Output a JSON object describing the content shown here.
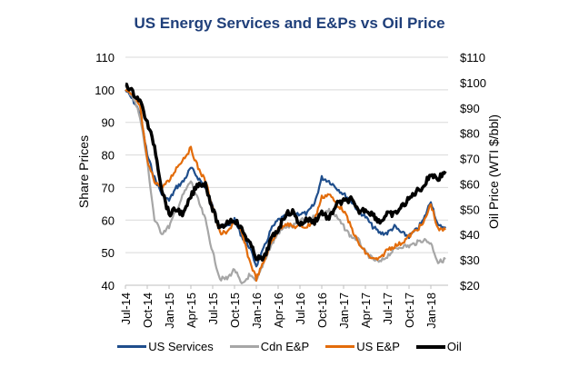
{
  "chart_data": {
    "type": "line",
    "title": "US Energy Services and E&Ps vs Oil Price",
    "xlabel": "",
    "ylabel": "Share Prices",
    "y2label": "Oil Price (WTI $/bbl)",
    "ylim": [
      40,
      110
    ],
    "y2lim": [
      20,
      110
    ],
    "yticks": [
      "40",
      "50",
      "60",
      "70",
      "80",
      "90",
      "100",
      "110"
    ],
    "y2ticks": [
      "$20",
      "$30",
      "$40",
      "$50",
      "$60",
      "$70",
      "$80",
      "$90",
      "$100",
      "$110"
    ],
    "xticks": [
      "Jul-14",
      "Oct-14",
      "Jan-15",
      "Apr-15",
      "Jul-15",
      "Oct-15",
      "Jan-16",
      "Apr-16",
      "Jul-16",
      "Oct-16",
      "Jan-17",
      "Apr-17",
      "Jul-17",
      "Oct-17",
      "Jan-18"
    ],
    "x": [
      "Jul-14",
      "Aug-14",
      "Sep-14",
      "Oct-14",
      "Nov-14",
      "Dec-14",
      "Jan-15",
      "Feb-15",
      "Mar-15",
      "Apr-15",
      "May-15",
      "Jun-15",
      "Jul-15",
      "Aug-15",
      "Sep-15",
      "Oct-15",
      "Nov-15",
      "Dec-15",
      "Jan-16",
      "Feb-16",
      "Mar-16",
      "Apr-16",
      "May-16",
      "Jun-16",
      "Jul-16",
      "Aug-16",
      "Sep-16",
      "Oct-16",
      "Nov-16",
      "Dec-16",
      "Jan-17",
      "Feb-17",
      "Mar-17",
      "Apr-17",
      "May-17",
      "Jun-17",
      "Jul-17",
      "Aug-17",
      "Sep-17",
      "Oct-17",
      "Nov-17",
      "Dec-17",
      "Jan-18",
      "Feb-18",
      "Mar-18"
    ],
    "grid": true,
    "legend": "bottom",
    "series": [
      {
        "name": "US Services",
        "axis": "left",
        "color": "#1f4e8c",
        "values": [
          100,
          97,
          93,
          80,
          73,
          68,
          66,
          70,
          72,
          76,
          73,
          70,
          64,
          58,
          58,
          60,
          55,
          52,
          46,
          51,
          57,
          60,
          61,
          62,
          62,
          62,
          65,
          73,
          72,
          70,
          68,
          66,
          63,
          61,
          58,
          56,
          56,
          58,
          56,
          55,
          57,
          60,
          66,
          58,
          58
        ]
      },
      {
        "name": "Cdn E&P",
        "axis": "left",
        "color": "#a6a6a6",
        "values": [
          101,
          98,
          92,
          78,
          60,
          56,
          58,
          63,
          68,
          72,
          66,
          60,
          50,
          42,
          42,
          45,
          40,
          43,
          41,
          47,
          52,
          56,
          58,
          58,
          60,
          60,
          61,
          62,
          63,
          61,
          58,
          55,
          54,
          50,
          48,
          47,
          49,
          51,
          52,
          52,
          53,
          54,
          53,
          47,
          48
        ]
      },
      {
        "name": "US E&P",
        "axis": "left",
        "color": "#e36c0a",
        "values": [
          100,
          98,
          95,
          78,
          72,
          70,
          72,
          76,
          79,
          82,
          76,
          72,
          64,
          56,
          56,
          60,
          56,
          48,
          42,
          47,
          53,
          57,
          59,
          58,
          58,
          58,
          60,
          67,
          68,
          65,
          63,
          58,
          53,
          50,
          48,
          48,
          51,
          52,
          53,
          55,
          57,
          59,
          65,
          57,
          57
        ]
      },
      {
        "name": "Oil",
        "axis": "right",
        "color": "#000000",
        "values": [
          100,
          96,
          93,
          84,
          75,
          58,
          48,
          50,
          48,
          55,
          60,
          60,
          50,
          42,
          45,
          46,
          42,
          37,
          31,
          30,
          38,
          42,
          48,
          49,
          44,
          46,
          45,
          49,
          46,
          52,
          53,
          54,
          49,
          50,
          48,
          45,
          48,
          48,
          51,
          54,
          57,
          59,
          64,
          62,
          65
        ]
      }
    ]
  }
}
